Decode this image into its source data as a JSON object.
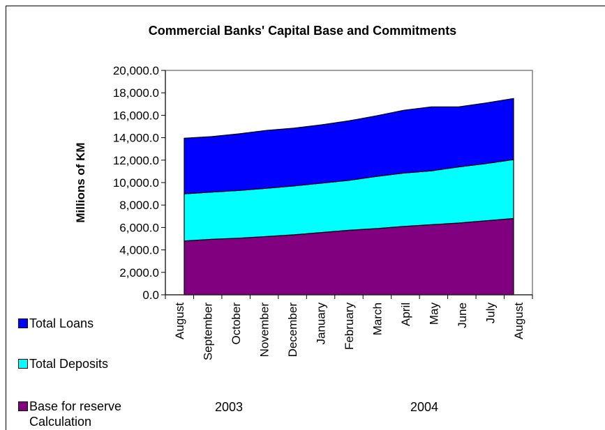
{
  "chart_data": {
    "type": "area",
    "stacked": true,
    "title": "Commercial Banks' Capital Base and Commitments",
    "ylabel": "Millions of KM",
    "xlabel": "",
    "ylim": [
      0,
      20000
    ],
    "yticks": [
      "0.0",
      "2,000.0",
      "4,000.0",
      "6,000.0",
      "8,000.0",
      "10,000.0",
      "12,000.0",
      "14,000.0",
      "16,000.0",
      "18,000.0",
      "20,000.0"
    ],
    "ytick_values": [
      0,
      2000,
      4000,
      6000,
      8000,
      10000,
      12000,
      14000,
      16000,
      18000,
      20000
    ],
    "categories": [
      "August",
      "September",
      "October",
      "November",
      "December",
      "January",
      "February",
      "March",
      "April",
      "May",
      "June",
      "July",
      "August"
    ],
    "year_labels": [
      "2003",
      "2004"
    ],
    "grid": false,
    "legend_position": "left",
    "series": [
      {
        "name": "Base for reserve Calculation",
        "color": "#800080",
        "values": [
          4800,
          4950,
          5050,
          5200,
          5350,
          5550,
          5750,
          5900,
          6100,
          6250,
          6400,
          6600,
          6800
        ]
      },
      {
        "name": "Total  Deposits",
        "color": "#00FFFF",
        "values": [
          4200,
          4200,
          4250,
          4300,
          4350,
          4400,
          4450,
          4650,
          4750,
          4800,
          5000,
          5100,
          5250
        ]
      },
      {
        "name": "Total  Loans",
        "color": "#0000FF",
        "values": [
          4950,
          4950,
          5050,
          5150,
          5150,
          5200,
          5300,
          5400,
          5600,
          5700,
          5350,
          5400,
          5450
        ]
      }
    ]
  },
  "legend": {
    "loans": "Total  Loans",
    "deposits": "Total  Deposits",
    "base_line1": "Base for reserve",
    "base_line2": "Calculation"
  },
  "colors": {
    "loans": "#0000FF",
    "deposits": "#00FFFF",
    "base": "#800080"
  }
}
